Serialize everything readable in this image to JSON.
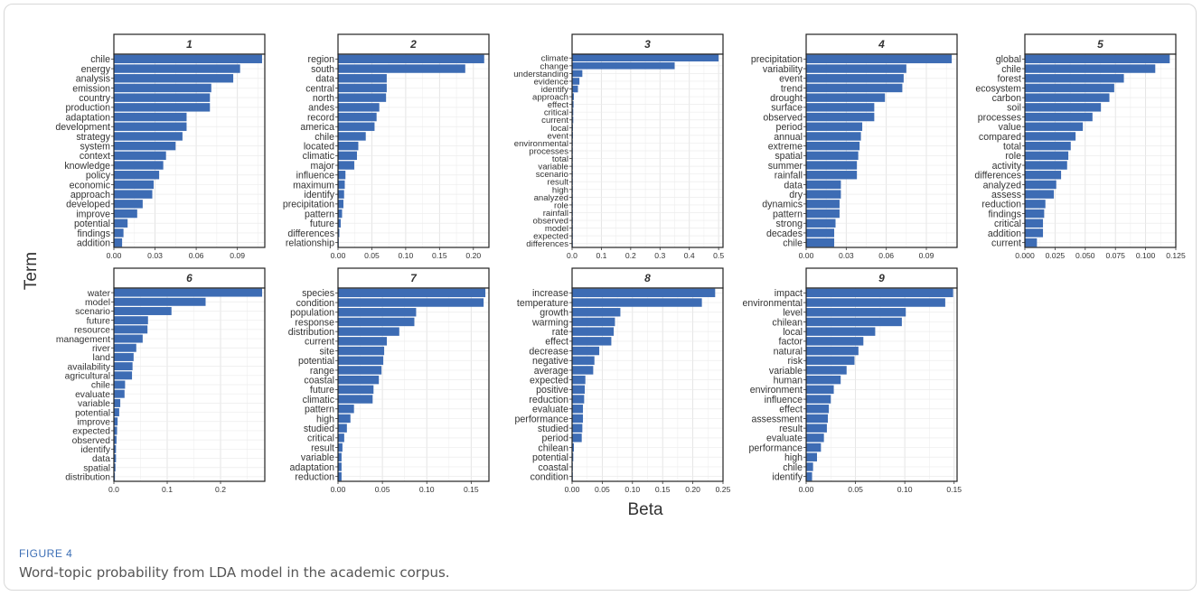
{
  "figure": {
    "label": "FIGURE 4",
    "caption": "Word-topic probability from LDA model in the academic corpus.",
    "bar_color": "#3d6cb4"
  },
  "chart_data": {
    "type": "bar",
    "orientation": "horizontal",
    "ylabel": "Term",
    "xlabel": "Beta",
    "grid": true,
    "panels": [
      {
        "title": "1",
        "xlim": [
          0,
          0.11
        ],
        "ticks": [
          0,
          0.03,
          0.06,
          0.09
        ],
        "tick_labels": [
          "0.00",
          "0.03",
          "0.06",
          "0.09"
        ],
        "categories": [
          "chile",
          "energy",
          "analysis",
          "emission",
          "country",
          "production",
          "adaptation",
          "development",
          "strategy",
          "system",
          "context",
          "knowledge",
          "policy",
          "economic",
          "approach",
          "developed",
          "improve",
          "potential",
          "findings",
          "addition"
        ],
        "values": [
          0.108,
          0.092,
          0.087,
          0.071,
          0.07,
          0.07,
          0.053,
          0.053,
          0.05,
          0.045,
          0.038,
          0.036,
          0.033,
          0.029,
          0.028,
          0.021,
          0.017,
          0.01,
          0.007,
          0.006
        ]
      },
      {
        "title": "2",
        "xlim": [
          0,
          0.223
        ],
        "ticks": [
          0,
          0.05,
          0.1,
          0.15,
          0.2
        ],
        "tick_labels": [
          "0.00",
          "0.05",
          "0.10",
          "0.15",
          "0.20"
        ],
        "categories": [
          "region",
          "south",
          "data",
          "central",
          "north",
          "andes",
          "record",
          "america",
          "chile",
          "located",
          "climatic",
          "major",
          "influence",
          "maximum",
          "identify",
          "precipitation",
          "pattern",
          "future",
          "differences",
          "relationship"
        ],
        "values": [
          0.216,
          0.188,
          0.072,
          0.072,
          0.071,
          0.061,
          0.057,
          0.054,
          0.041,
          0.03,
          0.028,
          0.024,
          0.011,
          0.01,
          0.009,
          0.008,
          0.006,
          0.004,
          0.002,
          0.001
        ]
      },
      {
        "title": "3",
        "xlim": [
          0,
          0.515
        ],
        "ticks": [
          0,
          0.1,
          0.2,
          0.3,
          0.4,
          0.5
        ],
        "tick_labels": [
          "0.0",
          "0.1",
          "0.2",
          "0.3",
          "0.4",
          "0.5"
        ],
        "categories": [
          "climate",
          "change",
          "understanding",
          "evidence",
          "identify",
          "approach",
          "effect",
          "critical",
          "current",
          "local",
          "event",
          "environmental",
          "processes",
          "total",
          "variable",
          "scenario",
          "result",
          "high",
          "analyzed",
          "role",
          "rainfall",
          "observed",
          "model",
          "expected",
          "differences"
        ],
        "values": [
          0.5,
          0.35,
          0.035,
          0.025,
          0.02,
          0.006,
          0.005,
          0.004,
          0.004,
          0.003,
          0.003,
          0.002,
          0.002,
          0.002,
          0.002,
          0.002,
          0.001,
          0.001,
          0.001,
          0.001,
          0.001,
          0.001,
          0.001,
          0.001,
          0.001
        ]
      },
      {
        "title": "4",
        "xlim": [
          0,
          0.113
        ],
        "ticks": [
          0,
          0.03,
          0.06,
          0.09
        ],
        "tick_labels": [
          "0.00",
          "0.03",
          "0.06",
          "0.09"
        ],
        "categories": [
          "precipitation",
          "variability",
          "event",
          "trend",
          "drought",
          "surface",
          "observed",
          "period",
          "annual",
          "extreme",
          "spatial",
          "summer",
          "rainfall",
          "data",
          "dry",
          "dynamics",
          "pattern",
          "strong",
          "decades",
          "chile"
        ],
        "values": [
          0.109,
          0.075,
          0.073,
          0.072,
          0.059,
          0.051,
          0.051,
          0.042,
          0.041,
          0.04,
          0.039,
          0.038,
          0.038,
          0.026,
          0.026,
          0.025,
          0.025,
          0.022,
          0.021,
          0.021
        ]
      },
      {
        "title": "5",
        "xlim": [
          0,
          0.125
        ],
        "ticks": [
          0,
          0.025,
          0.05,
          0.075,
          0.1,
          0.125
        ],
        "tick_labels": [
          "0.000",
          "0.025",
          "0.050",
          "0.075",
          "0.100",
          "0.125"
        ],
        "categories": [
          "global",
          "chile",
          "forest",
          "ecosystem",
          "carbon",
          "soil",
          "processes",
          "value",
          "compared",
          "total",
          "role",
          "activity",
          "differences",
          "analyzed",
          "assess",
          "reduction",
          "findings",
          "critical",
          "addition",
          "current"
        ],
        "values": [
          0.12,
          0.108,
          0.082,
          0.074,
          0.07,
          0.063,
          0.056,
          0.048,
          0.042,
          0.038,
          0.036,
          0.035,
          0.03,
          0.026,
          0.024,
          0.017,
          0.016,
          0.015,
          0.015,
          0.01
        ]
      },
      {
        "title": "6",
        "xlim": [
          0,
          0.283
        ],
        "ticks": [
          0,
          0.1,
          0.2
        ],
        "tick_labels": [
          "0.0",
          "0.1",
          "0.2"
        ],
        "categories": [
          "water",
          "model",
          "scenario",
          "future",
          "resource",
          "management",
          "river",
          "land",
          "availability",
          "agricultural",
          "chile",
          "evaluate",
          "variable",
          "potential",
          "improve",
          "expected",
          "observed",
          "identify",
          "data",
          "spatial",
          "distribution"
        ],
        "values": [
          0.278,
          0.172,
          0.108,
          0.064,
          0.063,
          0.054,
          0.042,
          0.037,
          0.035,
          0.034,
          0.021,
          0.02,
          0.012,
          0.01,
          0.007,
          0.006,
          0.005,
          0.004,
          0.004,
          0.003,
          0.002
        ]
      },
      {
        "title": "7",
        "xlim": [
          0,
          0.17
        ],
        "ticks": [
          0,
          0.05,
          0.1,
          0.15
        ],
        "tick_labels": [
          "0.00",
          "0.05",
          "0.10",
          "0.15"
        ],
        "categories": [
          "species",
          "condition",
          "population",
          "response",
          "distribution",
          "current",
          "site",
          "potential",
          "range",
          "coastal",
          "future",
          "climatic",
          "pattern",
          "high",
          "studied",
          "critical",
          "result",
          "variable",
          "adaptation",
          "reduction"
        ],
        "values": [
          0.166,
          0.164,
          0.088,
          0.086,
          0.069,
          0.055,
          0.052,
          0.051,
          0.049,
          0.046,
          0.04,
          0.039,
          0.018,
          0.014,
          0.01,
          0.007,
          0.005,
          0.004,
          0.004,
          0.004
        ]
      },
      {
        "title": "8",
        "xlim": [
          0,
          0.25
        ],
        "ticks": [
          0,
          0.05,
          0.1,
          0.15,
          0.2,
          0.25
        ],
        "tick_labels": [
          "0.00",
          "0.05",
          "0.10",
          "0.15",
          "0.20",
          "0.25"
        ],
        "categories": [
          "increase",
          "temperature",
          "growth",
          "warming",
          "rate",
          "effect",
          "decrease",
          "negative",
          "average",
          "expected",
          "positive",
          "reduction",
          "evaluate",
          "performance",
          "studied",
          "period",
          "chilean",
          "potential",
          "coastal",
          "condition"
        ],
        "values": [
          0.237,
          0.215,
          0.08,
          0.071,
          0.069,
          0.065,
          0.045,
          0.037,
          0.035,
          0.022,
          0.021,
          0.02,
          0.018,
          0.018,
          0.017,
          0.016,
          0.003,
          0.002,
          0.001,
          0.001
        ]
      },
      {
        "title": "9",
        "xlim": [
          0,
          0.153
        ],
        "ticks": [
          0,
          0.05,
          0.1,
          0.15
        ],
        "tick_labels": [
          "0.00",
          "0.05",
          "0.10",
          "0.15"
        ],
        "categories": [
          "impact",
          "environmental",
          "level",
          "chilean",
          "local",
          "factor",
          "natural",
          "risk",
          "variable",
          "human",
          "environment",
          "influence",
          "effect",
          "assessment",
          "result",
          "evaluate",
          "performance",
          "high",
          "chile",
          "identify"
        ],
        "values": [
          0.149,
          0.141,
          0.101,
          0.097,
          0.07,
          0.058,
          0.053,
          0.049,
          0.041,
          0.035,
          0.028,
          0.025,
          0.023,
          0.022,
          0.021,
          0.018,
          0.015,
          0.011,
          0.007,
          0.006
        ]
      }
    ]
  }
}
